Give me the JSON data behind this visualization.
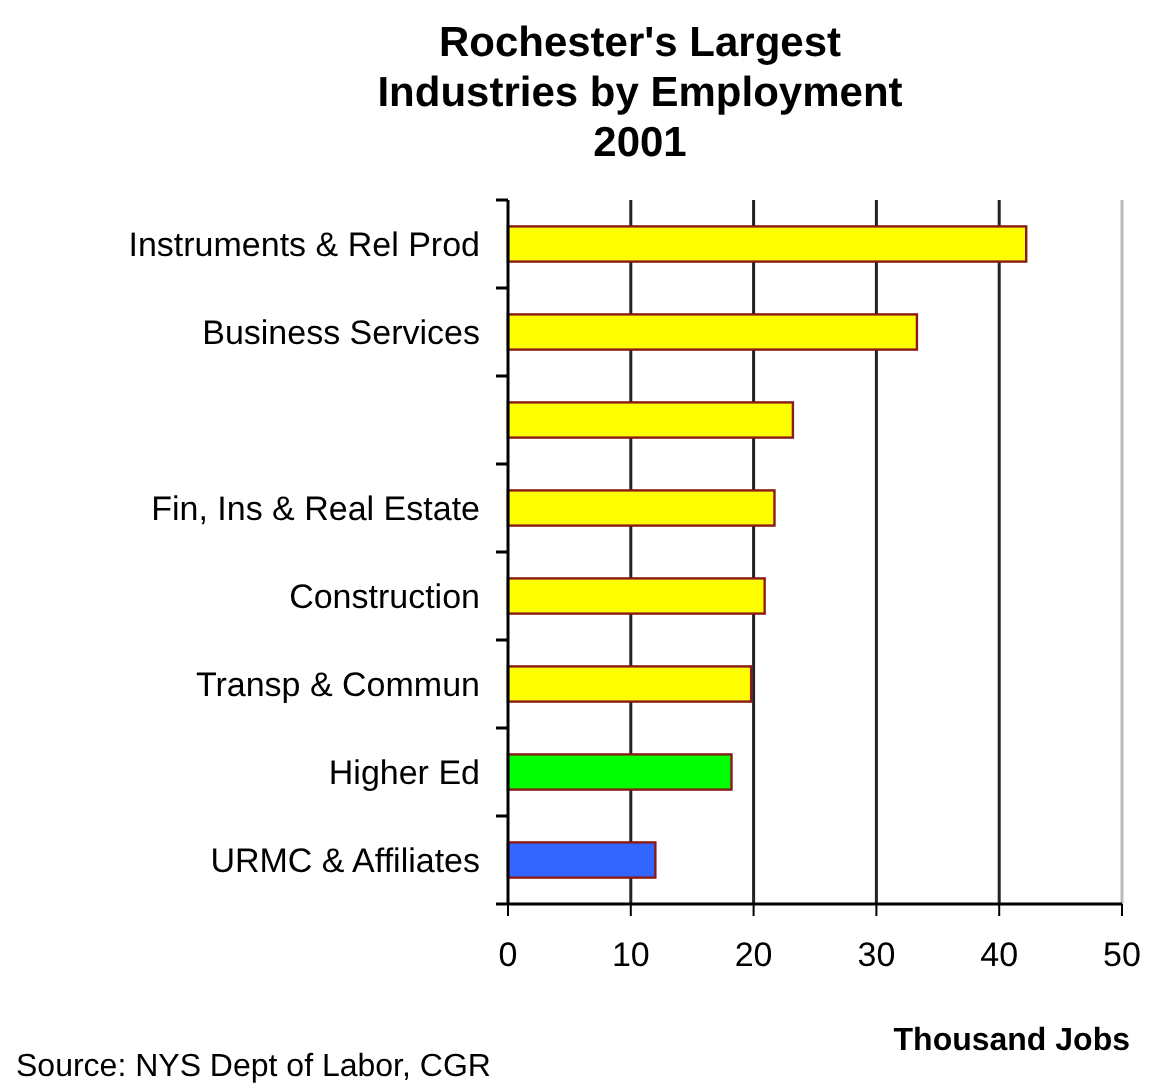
{
  "chart_data": {
    "type": "bar",
    "orientation": "horizontal",
    "title": "Rochester's Largest Industries by Employment 2001",
    "xlabel": "Thousand Jobs",
    "categories": [
      "Instruments & Rel Prod",
      "Business Services",
      null,
      "Fin, Ins & Real Estate",
      "Construction",
      "Transp & Commun",
      "Higher Ed",
      "URMC & Affiliates"
    ],
    "values": [
      42.2,
      33.3,
      23.2,
      21.7,
      20.9,
      19.8,
      18.2,
      12.0
    ],
    "colors": [
      "#ffff00",
      "#ffff00",
      "#ffff00",
      "#ffff00",
      "#ffff00",
      "#ffff00",
      "#00ff00",
      "#3366ff"
    ],
    "xlim": [
      0,
      50
    ],
    "xticks": [
      0,
      10,
      20,
      30,
      40,
      50
    ],
    "grid": "x",
    "annotations": [
      "Source: NYS Dept of Labor, CGR"
    ]
  }
}
